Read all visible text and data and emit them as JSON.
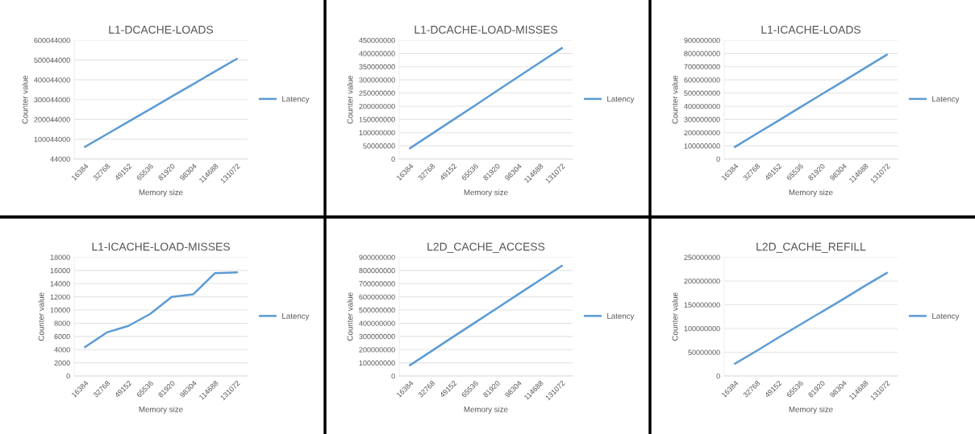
{
  "chart_data": [
    {
      "type": "line",
      "title": "L1-DCACHE-LOADS",
      "xlabel": "Memory size",
      "ylabel": "Counter value",
      "categories": [
        "16384",
        "32768",
        "49152",
        "65536",
        "81920",
        "98304",
        "114688",
        "131072"
      ],
      "series": [
        {
          "name": "Latency",
          "color": "#5b9bd5",
          "values": [
            62000000,
            125000000,
            189000000,
            252000000,
            316000000,
            379000000,
            443000000,
            506000000
          ]
        }
      ],
      "ylim": [
        44000,
        600044000
      ],
      "yticks": [
        44000,
        100044000,
        200044000,
        300044000,
        400044000,
        500044000,
        600044000
      ],
      "grid": "y",
      "legend": "right",
      "marker": "none",
      "line_style": "solid"
    },
    {
      "type": "line",
      "title": "L1-DCACHE-LOAD-MISSES",
      "xlabel": "Memory size",
      "ylabel": "Counter value",
      "categories": [
        "16384",
        "32768",
        "49152",
        "65536",
        "81920",
        "98304",
        "114688",
        "131072"
      ],
      "series": [
        {
          "name": "Latency",
          "color": "#5b9bd5",
          "values": [
            41000000,
            95000000,
            149000000,
            203000000,
            258000000,
            312000000,
            366000000,
            420000000
          ]
        }
      ],
      "ylim": [
        0,
        450000000
      ],
      "yticks": [
        0,
        50000000,
        100000000,
        150000000,
        200000000,
        250000000,
        300000000,
        350000000,
        400000000,
        450000000
      ],
      "grid": "y",
      "legend": "right",
      "marker": "none",
      "line_style": "solid"
    },
    {
      "type": "line",
      "title": "L1-ICACHE-LOADS",
      "xlabel": "Memory size",
      "ylabel": "Counter value",
      "categories": [
        "16384",
        "32768",
        "49152",
        "65536",
        "81920",
        "98304",
        "114688",
        "131072"
      ],
      "series": [
        {
          "name": "Latency",
          "color": "#5b9bd5",
          "values": [
            92000000,
            192000000,
            291000000,
            391000000,
            491000000,
            590000000,
            690000000,
            790000000
          ]
        }
      ],
      "ylim": [
        0,
        900000000
      ],
      "yticks": [
        0,
        100000000,
        200000000,
        300000000,
        400000000,
        500000000,
        600000000,
        700000000,
        800000000,
        900000000
      ],
      "grid": "y",
      "legend": "right",
      "marker": "none",
      "line_style": "solid"
    },
    {
      "type": "line",
      "title": "L1-ICACHE-LOAD-MISSES",
      "xlabel": "Memory size",
      "ylabel": "Counter value",
      "categories": [
        "16384",
        "32768",
        "49152",
        "65536",
        "81920",
        "98304",
        "114688",
        "131072"
      ],
      "series": [
        {
          "name": "Latency",
          "color": "#5b9bd5",
          "values": [
            4400,
            6600,
            7600,
            9400,
            12000,
            12400,
            15600,
            15700
          ]
        }
      ],
      "ylim": [
        0,
        18000
      ],
      "yticks": [
        0,
        2000,
        4000,
        6000,
        8000,
        10000,
        12000,
        14000,
        16000,
        18000
      ],
      "grid": "y",
      "legend": "right",
      "marker": "none",
      "line_style": "solid"
    },
    {
      "type": "line",
      "title": "L2D_CACHE_ACCESS",
      "xlabel": "Memory size",
      "ylabel": "Counter value",
      "categories": [
        "16384",
        "32768",
        "49152",
        "65536",
        "81920",
        "98304",
        "114688",
        "131072"
      ],
      "series": [
        {
          "name": "Latency",
          "color": "#5b9bd5",
          "values": [
            83000000,
            190000000,
            298000000,
            405000000,
            513000000,
            620000000,
            728000000,
            835000000
          ]
        }
      ],
      "ylim": [
        0,
        900000000
      ],
      "yticks": [
        0,
        100000000,
        200000000,
        300000000,
        400000000,
        500000000,
        600000000,
        700000000,
        800000000,
        900000000
      ],
      "grid": "y",
      "legend": "right",
      "marker": "none",
      "line_style": "solid"
    },
    {
      "type": "line",
      "title": "L2D_CACHE_REFILL",
      "xlabel": "Memory size",
      "ylabel": "Counter value",
      "categories": [
        "16384",
        "32768",
        "49152",
        "65536",
        "81920",
        "98304",
        "114688",
        "131072"
      ],
      "series": [
        {
          "name": "Latency",
          "color": "#5b9bd5",
          "values": [
            26000000,
            53000000,
            81000000,
            108000000,
            135000000,
            162000000,
            190000000,
            217000000
          ]
        }
      ],
      "ylim": [
        0,
        250000000
      ],
      "yticks": [
        0,
        50000000,
        100000000,
        150000000,
        200000000,
        250000000
      ],
      "grid": "y",
      "legend": "right",
      "marker": "none",
      "line_style": "solid"
    }
  ]
}
